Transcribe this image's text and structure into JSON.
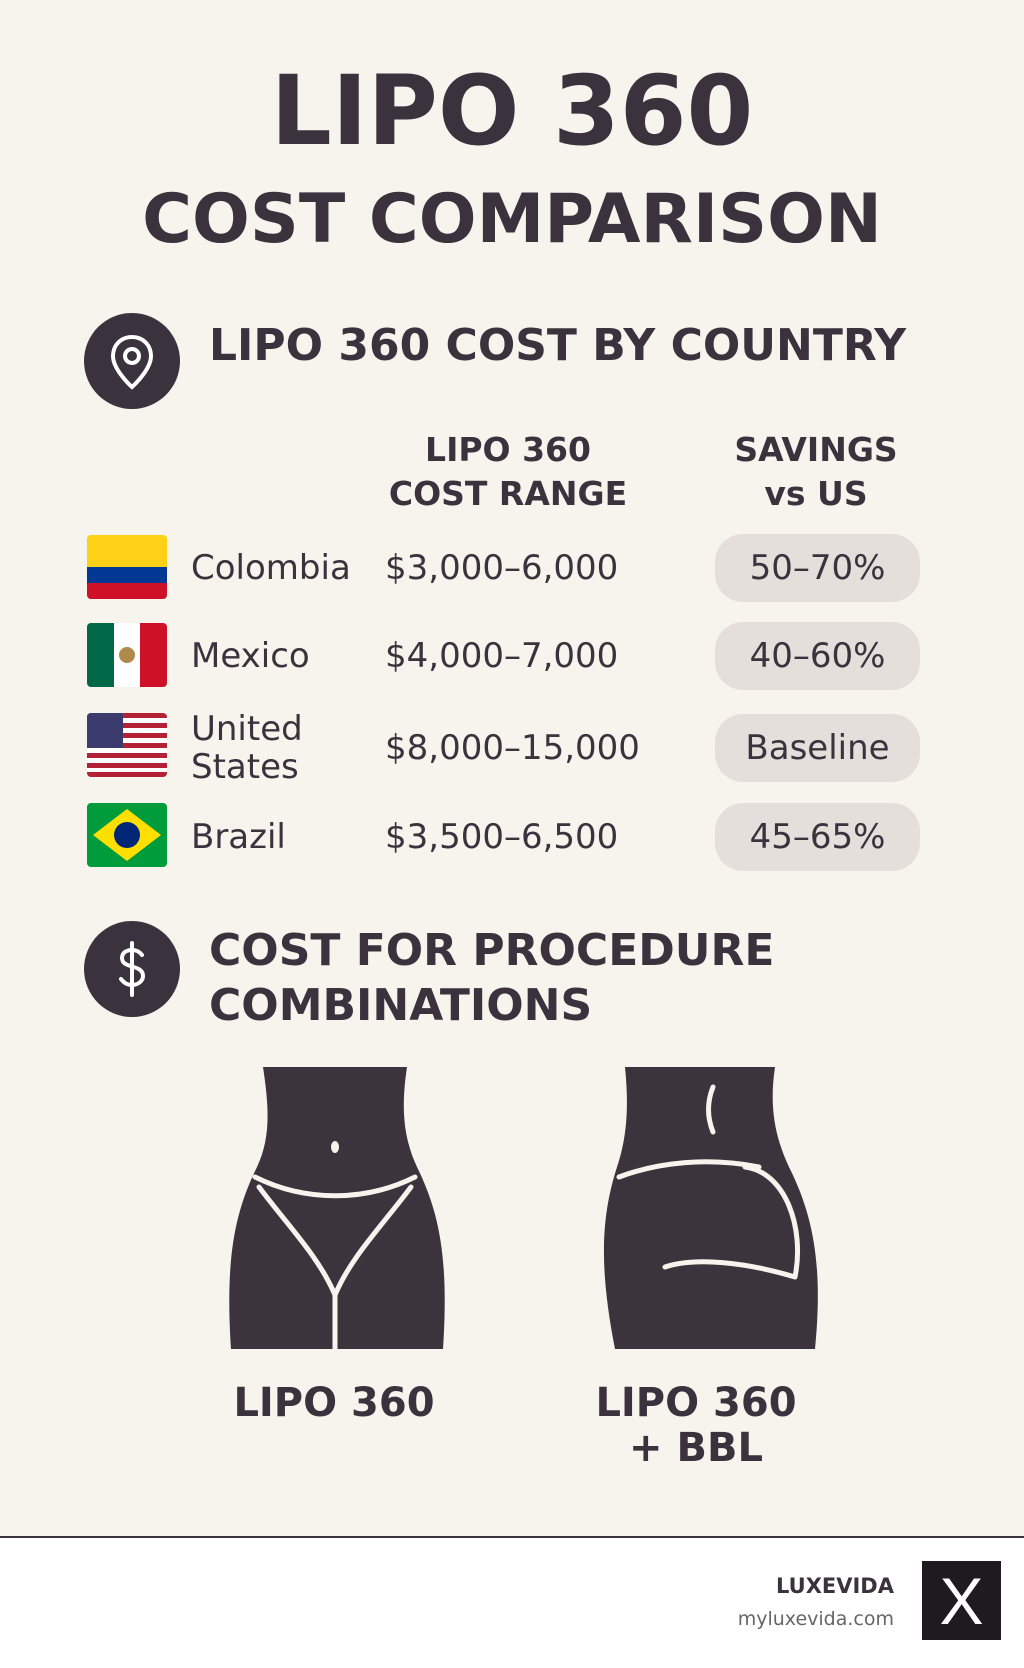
{
  "header": {
    "title_lines": [
      "LIPO 360",
      "COST COMPARISON"
    ]
  },
  "section_country": {
    "heading": "LIPO 360 COST BY COUNTRY"
  },
  "table": {
    "header": {
      "cost": [
        "LIPO 360",
        "COST RANGE"
      ],
      "savings": [
        "SAVINGS",
        "vs US"
      ]
    },
    "rows": [
      [
        "Colombia",
        "$3,000–6,000",
        "50–70%"
      ],
      [
        "Mexico",
        "$4,000–7,000",
        "40–60%"
      ],
      [
        "United States",
        "$8,000–15,000",
        "Baseline"
      ],
      [
        "Brazil",
        "$3,500–6,500",
        "45–65%"
      ]
    ]
  },
  "section_combos": {
    "heading_lines": [
      "COST FOR PROCEDURE",
      "COMBINATIONS"
    ]
  },
  "combos": [
    {
      "label_lines": [
        "LIPO 360"
      ]
    },
    {
      "label_lines": [
        "LIPO 360",
        "+ BBL"
      ]
    }
  ],
  "footer": {
    "brand": "LUXEVIDA",
    "url": "myluxevida.com",
    "logo": "X"
  }
}
